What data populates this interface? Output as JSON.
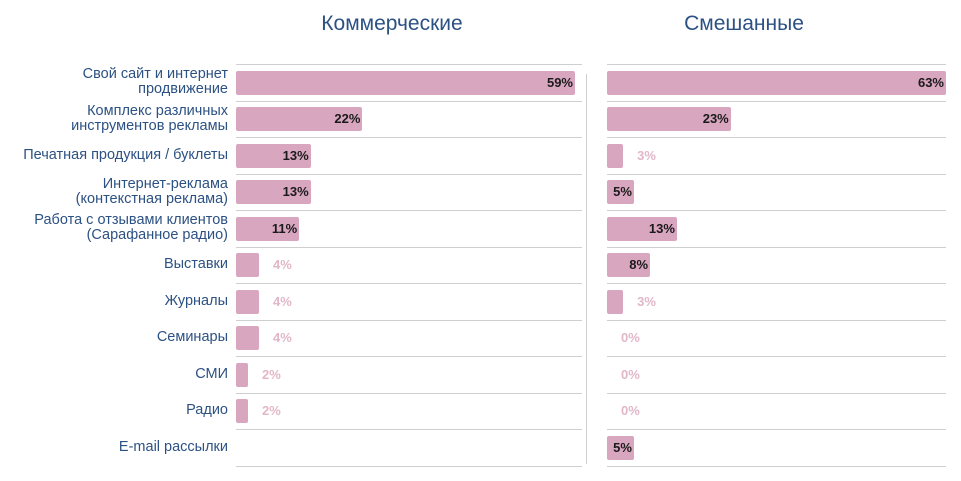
{
  "colors": {
    "bar": "#d9a6c0",
    "title": "#2c5183",
    "label_out": "#e2b7c8"
  },
  "chart_data": {
    "type": "bar",
    "orientation": "horizontal",
    "categories": [
      "Свой сайт и интернет\nпродвижение",
      "Комплекс различных\nинструментов рекламы",
      "Печатная продукция / буклеты",
      "Интернет-реклама\n(контекстная реклама)",
      "Работа с отзывами клиентов\n(Сарафанное радио)",
      "Выставки",
      "Журналы",
      "Семинары",
      "СМИ",
      "Радио",
      "E-mail рассылки"
    ],
    "series": [
      {
        "name": "Коммерческие",
        "values": [
          59,
          22,
          13,
          13,
          11,
          4,
          4,
          4,
          2,
          2,
          null
        ],
        "labels": [
          "59%",
          "22%",
          "13%",
          "13%",
          "11%",
          "4%",
          "4%",
          "4%",
          "2%",
          "2%",
          ""
        ]
      },
      {
        "name": "Смешанные",
        "values": [
          63,
          23,
          3,
          5,
          13,
          8,
          3,
          0,
          0,
          0,
          5
        ],
        "labels": [
          "63%",
          "23%",
          "3%",
          "5%",
          "13%",
          "8%",
          "3%",
          "0%",
          "0%",
          "0%",
          "5%"
        ]
      }
    ],
    "xlim": [
      0,
      63
    ]
  }
}
